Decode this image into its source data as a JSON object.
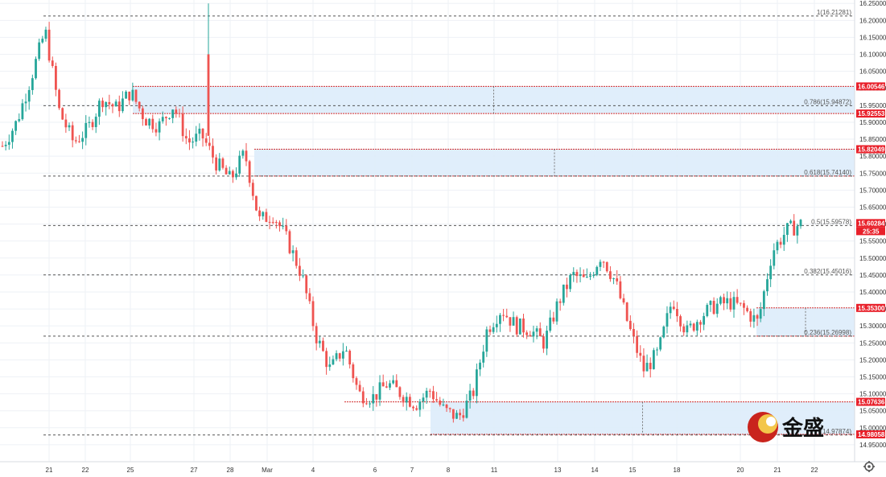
{
  "chart_data": {
    "type": "candlestick",
    "instrument_note": "",
    "y_axis": {
      "position": "right",
      "ylim": [
        14.9,
        16.26
      ],
      "tick_labels": [
        "16.25000",
        "16.20000",
        "16.15000",
        "16.10000",
        "16.05000",
        "16.00000",
        "15.95000",
        "15.90000",
        "15.85000",
        "15.80000",
        "15.75000",
        "15.70000",
        "15.65000",
        "15.60000",
        "15.55000",
        "15.50000",
        "15.45000",
        "15.40000",
        "15.35000",
        "15.30000",
        "15.25000",
        "15.20000",
        "15.15000",
        "15.10000",
        "15.05000",
        "15.00000",
        "14.95000"
      ],
      "tick_values": [
        16.25,
        16.2,
        16.15,
        16.1,
        16.05,
        16.0,
        15.95,
        15.9,
        15.85,
        15.8,
        15.75,
        15.7,
        15.65,
        15.6,
        15.55,
        15.5,
        15.45,
        15.4,
        15.35,
        15.3,
        15.25,
        15.2,
        15.15,
        15.1,
        15.05,
        15.0,
        14.95
      ]
    },
    "x_axis": {
      "tick_labels": [
        "21",
        "22",
        "25",
        "27",
        "28",
        "Mar",
        "4",
        "6",
        "7",
        "8",
        "11",
        "13",
        "14",
        "15",
        "18",
        "20",
        "21",
        "22"
      ]
    },
    "grid": true,
    "fib_levels": [
      {
        "label": "1(16.21281)",
        "value": 16.21281
      },
      {
        "label": "0.786(15.94872)",
        "value": 15.94872
      },
      {
        "label": "0.618(15.74140)",
        "value": 15.7414
      },
      {
        "label": "0.5(15.59578)",
        "value": 15.59578
      },
      {
        "label": "0.382(15.45016)",
        "value": 15.45016
      },
      {
        "label": "0.236(15.26998)",
        "value": 15.26998
      },
      {
        "label": "(14.97874)",
        "value": 14.97874
      }
    ],
    "zones": [
      {
        "top": 16.00546,
        "bottom": 15.92553
      },
      {
        "top": 15.82049,
        "bottom": 15.7414
      },
      {
        "top": 15.353,
        "bottom": 15.26998
      },
      {
        "top": 15.07636,
        "bottom": 14.98058
      }
    ],
    "price_tags": [
      {
        "label": "16.00546",
        "value": 16.00546,
        "color": "#e8202a"
      },
      {
        "label": "15.92553",
        "value": 15.92553,
        "color": "#e8202a"
      },
      {
        "label": "15.82049",
        "value": 15.82049,
        "color": "#e8202a"
      },
      {
        "label": "15.60284",
        "value": 15.60284,
        "color": "#e8202a",
        "sub": "25:35"
      },
      {
        "label": "15.35300",
        "value": 15.353,
        "color": "#e8202a"
      },
      {
        "label": "15.07636",
        "value": 15.07636,
        "color": "#e8202a"
      },
      {
        "label": "14.98058",
        "value": 14.98058,
        "color": "#e8202a"
      }
    ],
    "colors": {
      "up": "#26a69a",
      "down": "#ef5350"
    },
    "price_path": [
      15.83,
      15.9,
      16.03,
      16.17,
      15.93,
      15.84,
      15.88,
      15.97,
      15.94,
      15.99,
      15.91,
      15.89,
      15.95,
      15.84,
      15.86,
      15.78,
      15.73,
      15.81,
      15.61,
      15.63,
      15.55,
      15.45,
      15.27,
      15.17,
      15.24,
      15.1,
      15.09,
      15.13,
      15.1,
      15.07,
      15.11,
      15.05,
      15.03,
      15.1,
      15.29,
      15.35,
      15.3,
      15.29,
      15.25,
      15.37,
      15.45,
      15.43,
      15.51,
      15.43,
      15.29,
      15.17,
      15.22,
      15.38,
      15.28,
      15.33,
      15.36,
      15.37,
      15.35,
      15.31,
      15.52,
      15.58,
      15.6
    ]
  },
  "branding": {
    "logo_text": "金盛"
  },
  "ui": {
    "settings_icon": "gear-icon"
  }
}
